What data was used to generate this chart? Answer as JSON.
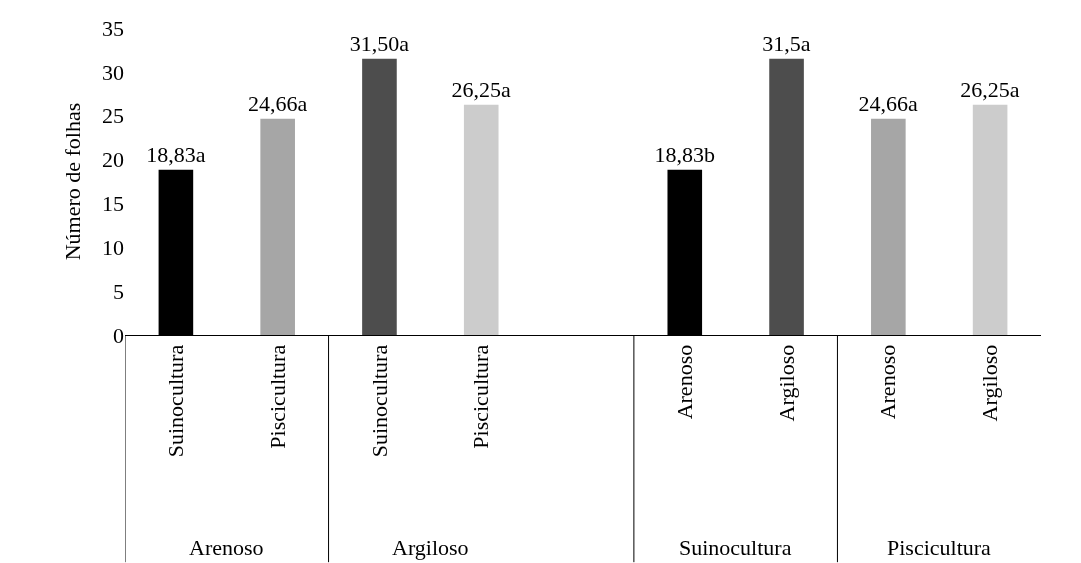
{
  "chart_data": {
    "type": "bar",
    "ylabel": "Número de folhas",
    "categories": [
      "Suinocultura",
      "Piscicultura",
      "Suinocultura",
      "Piscicultura",
      null,
      "Arenoso",
      "Argiloso",
      "Arenoso",
      "Argiloso"
    ],
    "values": [
      18.83,
      24.66,
      31.5,
      26.25,
      null,
      18.83,
      31.5,
      24.66,
      26.25
    ],
    "value_labels": [
      "18,83a",
      "24,66a",
      "31,50a",
      "26,25a",
      null,
      "18,83b",
      "31,5a",
      "24,66a",
      "26,25a"
    ],
    "colors": [
      "#000000",
      "#a6a6a6",
      "#4d4d4d",
      "#cccccc",
      "#ffffff",
      "#000000",
      "#4d4d4d",
      "#a6a6a6",
      "#cccccc"
    ],
    "annotations": [
      "Arenoso",
      "Argiloso",
      "Suinocultura",
      "Piscicultura"
    ],
    "ylim": [
      0,
      35
    ],
    "yticks": [
      0,
      5,
      10,
      15,
      20,
      25,
      30,
      35
    ],
    "legend": false
  }
}
